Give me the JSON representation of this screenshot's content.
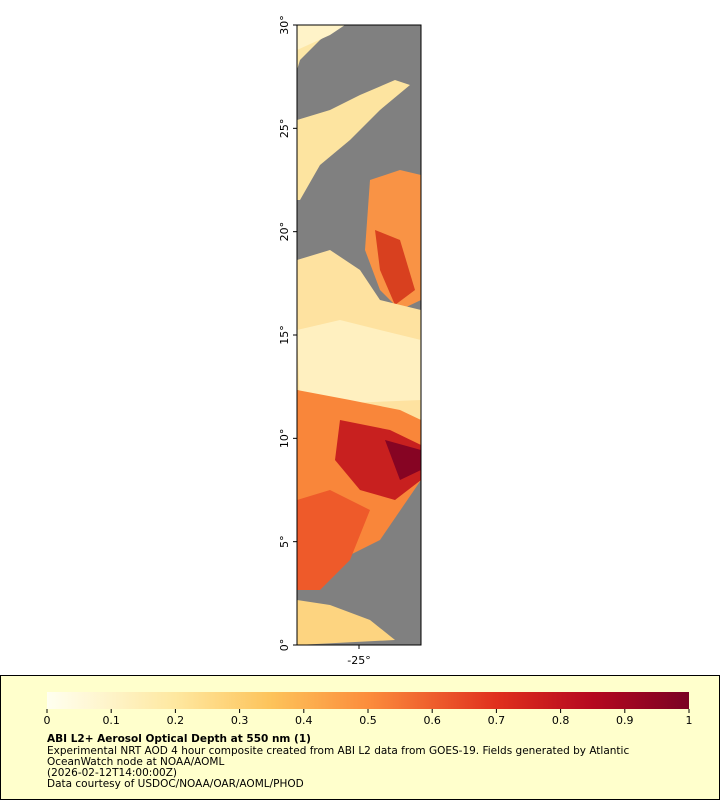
{
  "map": {
    "xlim": [
      -28,
      -22
    ],
    "ylim": [
      0,
      30
    ],
    "xticks": [
      {
        "value": -25,
        "label": "-25°"
      }
    ],
    "yticks": [
      {
        "value": 0,
        "label": "0°"
      },
      {
        "value": 5,
        "label": "5°"
      },
      {
        "value": 10,
        "label": "10°"
      },
      {
        "value": 15,
        "label": "15°"
      },
      {
        "value": 20,
        "label": "20°"
      },
      {
        "value": 25,
        "label": "25°"
      },
      {
        "value": 30,
        "label": "30°"
      }
    ]
  },
  "legend": {
    "range": [
      0,
      1
    ],
    "ticks": [
      0,
      0.1,
      0.2,
      0.3,
      0.4,
      0.5,
      0.6,
      0.7,
      0.8,
      0.9,
      1
    ],
    "title": "ABI L2+ Aerosol Optical Depth at 550 nm (1)",
    "lines": [
      "Experimental NRT AOD 4 hour composite created from ABI L2 data from GOES-19. Fields generated by Atlantic",
      "OceanWatch node at NOAA/AOML",
      "(2026-02-12T14:00:00Z)",
      "Data courtesy of USDOC/NOAA/OAR/AOML/PHOD"
    ]
  }
}
